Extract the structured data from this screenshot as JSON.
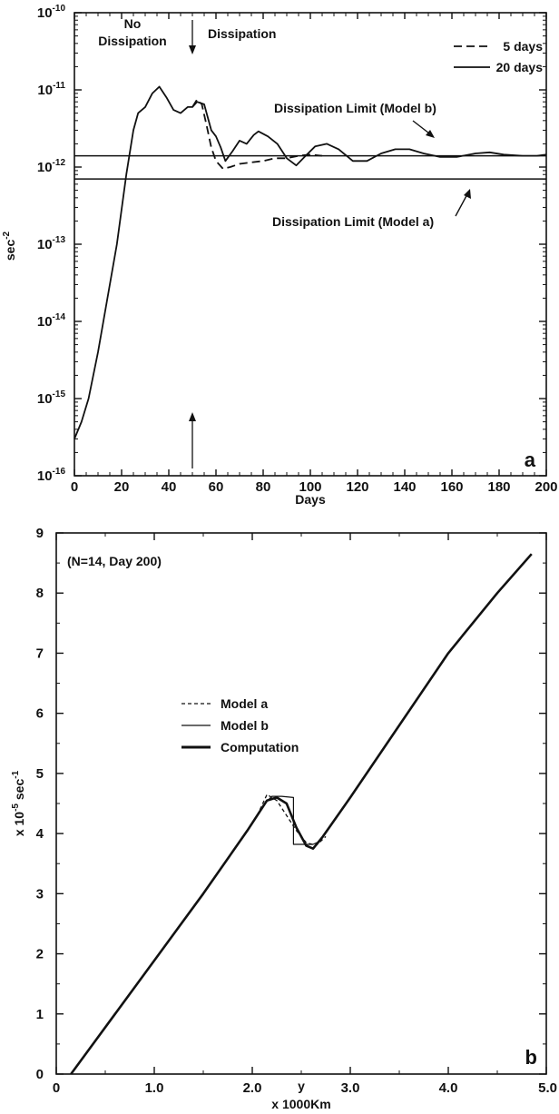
{
  "chart_data": [
    {
      "type": "line",
      "panel_label": "a",
      "xlabel": "Days",
      "ylabel": "sec-2",
      "y_scale": "log",
      "xlim": [
        0,
        200
      ],
      "ylim": [
        1e-16,
        1e-10
      ],
      "x_ticks": [
        0,
        20,
        40,
        60,
        80,
        100,
        120,
        140,
        160,
        180,
        200
      ],
      "y_ticks": [
        {
          "base": "10",
          "exp": "-16"
        },
        {
          "base": "10",
          "exp": "-15"
        },
        {
          "base": "10",
          "exp": "-14"
        },
        {
          "base": "10",
          "exp": "-13"
        },
        {
          "base": "10",
          "exp": "-12"
        },
        {
          "base": "10",
          "exp": "-11"
        },
        {
          "base": "10",
          "exp": "-10"
        }
      ],
      "legend": {
        "position": "top-right",
        "entries": [
          {
            "label": "5 days",
            "style": "dashed"
          },
          {
            "label": "20 days",
            "style": "solid"
          }
        ]
      },
      "annotations": {
        "no_dissipation_line1": "No",
        "no_dissipation_line2": "Dissipation",
        "dissipation": "Dissipation",
        "limit_b": "Dissipation Limit (Model b)",
        "limit_a": "Dissipation Limit (Model a)"
      },
      "dissipation_onset_day": 50,
      "hlines": [
        {
          "name": "Dissipation Limit (Model b)",
          "y": 1.4e-12
        },
        {
          "name": "Dissipation Limit (Model a)",
          "y": 7e-13
        }
      ],
      "series": [
        {
          "name": "20 days",
          "style": "solid",
          "points": [
            [
              0,
              3e-16
            ],
            [
              3,
              5e-16
            ],
            [
              6,
              1e-15
            ],
            [
              10,
              4e-15
            ],
            [
              14,
              2e-14
            ],
            [
              18,
              1e-13
            ],
            [
              22,
              8e-13
            ],
            [
              25,
              3e-12
            ],
            [
              27,
              5e-12
            ],
            [
              30,
              6e-12
            ],
            [
              33,
              9e-12
            ],
            [
              36,
              1.1e-11
            ],
            [
              39,
              8e-12
            ],
            [
              42,
              5.5e-12
            ],
            [
              45,
              5e-12
            ],
            [
              48,
              6e-12
            ],
            [
              50,
              6e-12
            ],
            [
              52,
              7e-12
            ],
            [
              55,
              6.5e-12
            ],
            [
              58,
              3e-12
            ],
            [
              60,
              2.5e-12
            ],
            [
              62,
              1.8e-12
            ],
            [
              64,
              1.2e-12
            ],
            [
              67,
              1.6e-12
            ],
            [
              70,
              2.2e-12
            ],
            [
              73,
              2e-12
            ],
            [
              76,
              2.6e-12
            ],
            [
              78,
              2.9e-12
            ],
            [
              82,
              2.5e-12
            ],
            [
              86,
              2e-12
            ],
            [
              90,
              1.3e-12
            ],
            [
              94,
              1.05e-12
            ],
            [
              98,
              1.4e-12
            ],
            [
              102,
              1.85e-12
            ],
            [
              107,
              2e-12
            ],
            [
              112,
              1.7e-12
            ],
            [
              118,
              1.2e-12
            ],
            [
              124,
              1.2e-12
            ],
            [
              130,
              1.5e-12
            ],
            [
              136,
              1.7e-12
            ],
            [
              142,
              1.7e-12
            ],
            [
              148,
              1.5e-12
            ],
            [
              155,
              1.35e-12
            ],
            [
              162,
              1.35e-12
            ],
            [
              170,
              1.5e-12
            ],
            [
              176,
              1.55e-12
            ],
            [
              182,
              1.45e-12
            ],
            [
              190,
              1.4e-12
            ],
            [
              196,
              1.4e-12
            ],
            [
              200,
              1.45e-12
            ]
          ]
        },
        {
          "name": "5 days",
          "style": "dashed",
          "points": [
            [
              50,
              6e-12
            ],
            [
              52,
              7.5e-12
            ],
            [
              54,
              6.5e-12
            ],
            [
              56,
              3.5e-12
            ],
            [
              58,
              1.8e-12
            ],
            [
              60,
              1.2e-12
            ],
            [
              63,
              9.5e-13
            ],
            [
              66,
              1e-12
            ],
            [
              70,
              1.1e-12
            ],
            [
              75,
              1.15e-12
            ],
            [
              80,
              1.2e-12
            ],
            [
              85,
              1.3e-12
            ],
            [
              90,
              1.3e-12
            ],
            [
              95,
              1.4e-12
            ],
            [
              100,
              1.45e-12
            ],
            [
              105,
              1.4e-12
            ]
          ]
        }
      ]
    },
    {
      "type": "line",
      "panel_label": "b",
      "title": "(N=14, Day 200)",
      "xlabel_line1": "y",
      "xlabel_line2": "x 1000Km",
      "ylabel": "x 10-5 sec-1",
      "xlim": [
        0,
        5
      ],
      "ylim": [
        0,
        9
      ],
      "x_ticks": [
        "0",
        "1.0",
        "2.0",
        "3.0",
        "4.0",
        "5.0"
      ],
      "y_ticks": [
        "0",
        "1",
        "2",
        "3",
        "4",
        "5",
        "6",
        "7",
        "8",
        "9"
      ],
      "legend": {
        "position": "center-left",
        "entries": [
          {
            "label": "Model a",
            "style": "dashed"
          },
          {
            "label": "Model b",
            "style": "thin"
          },
          {
            "label": "Computation",
            "style": "thick"
          }
        ]
      },
      "series": [
        {
          "name": "Computation",
          "style": "thick",
          "points": [
            [
              0.15,
              0
            ],
            [
              0.6,
              1.0
            ],
            [
              1.05,
              2.0
            ],
            [
              1.5,
              3.0
            ],
            [
              1.95,
              4.05
            ],
            [
              2.15,
              4.55
            ],
            [
              2.25,
              4.6
            ],
            [
              2.35,
              4.5
            ],
            [
              2.45,
              4.1
            ],
            [
              2.55,
              3.8
            ],
            [
              2.62,
              3.75
            ],
            [
              2.72,
              3.95
            ],
            [
              3.0,
              4.6
            ],
            [
              3.5,
              5.8
            ],
            [
              4.0,
              7.0
            ],
            [
              4.5,
              8.0
            ],
            [
              4.85,
              8.65
            ]
          ]
        },
        {
          "name": "Model a",
          "style": "dashed",
          "points": [
            [
              2.05,
              4.3
            ],
            [
              2.15,
              4.65
            ],
            [
              2.25,
              4.55
            ],
            [
              2.35,
              4.3
            ],
            [
              2.45,
              4.05
            ],
            [
              2.55,
              3.85
            ],
            [
              2.65,
              3.8
            ],
            [
              2.75,
              3.95
            ]
          ]
        },
        {
          "name": "Model b",
          "style": "thin",
          "points": [
            [
              2.1,
              4.45
            ],
            [
              2.2,
              4.62
            ],
            [
              2.3,
              4.62
            ],
            [
              2.42,
              4.6
            ],
            [
              2.42,
              3.82
            ],
            [
              2.62,
              3.82
            ],
            [
              2.7,
              3.88
            ]
          ]
        }
      ]
    }
  ]
}
